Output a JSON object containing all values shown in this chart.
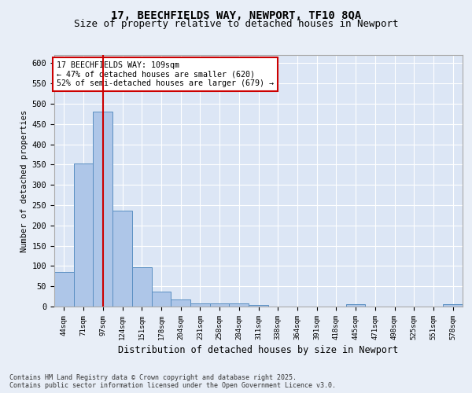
{
  "title": "17, BEECHFIELDS WAY, NEWPORT, TF10 8QA",
  "subtitle": "Size of property relative to detached houses in Newport",
  "xlabel": "Distribution of detached houses by size in Newport",
  "ylabel": "Number of detached properties",
  "categories": [
    "44sqm",
    "71sqm",
    "97sqm",
    "124sqm",
    "151sqm",
    "178sqm",
    "204sqm",
    "231sqm",
    "258sqm",
    "284sqm",
    "311sqm",
    "338sqm",
    "364sqm",
    "391sqm",
    "418sqm",
    "445sqm",
    "471sqm",
    "498sqm",
    "525sqm",
    "551sqm",
    "578sqm"
  ],
  "values": [
    85,
    352,
    480,
    237,
    96,
    37,
    17,
    8,
    8,
    8,
    4,
    0,
    0,
    0,
    0,
    5,
    0,
    0,
    0,
    0,
    5
  ],
  "bar_color": "#aec6e8",
  "bar_edgecolor": "#5a8fc2",
  "vline_x": 2.0,
  "vline_color": "#cc0000",
  "annotation_text": "17 BEECHFIELDS WAY: 109sqm\n← 47% of detached houses are smaller (620)\n52% of semi-detached houses are larger (679) →",
  "annotation_box_color": "#ffffff",
  "annotation_box_edgecolor": "#cc0000",
  "bg_color": "#e8eef7",
  "plot_bg_color": "#dce6f5",
  "grid_color": "#ffffff",
  "footer": "Contains HM Land Registry data © Crown copyright and database right 2025.\nContains public sector information licensed under the Open Government Licence v3.0.",
  "ylim": [
    0,
    620
  ],
  "yticks": [
    0,
    50,
    100,
    150,
    200,
    250,
    300,
    350,
    400,
    450,
    500,
    550,
    600
  ],
  "title_fontsize": 10,
  "subtitle_fontsize": 9
}
